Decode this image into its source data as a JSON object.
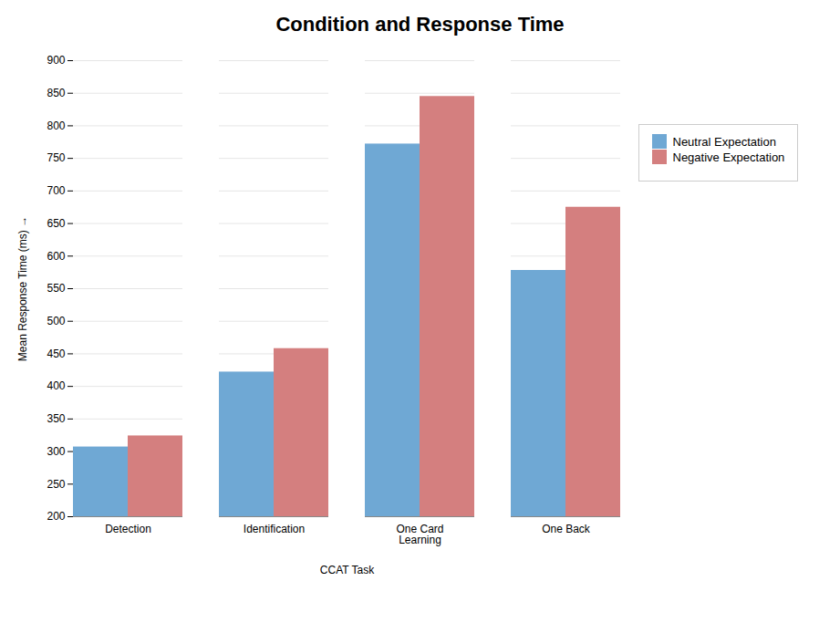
{
  "chart_data": {
    "type": "bar",
    "title": "Condition and Response Time",
    "xlabel": "CCAT Task",
    "ylabel": "Mean Response Time (ms)",
    "categories": [
      "Detection",
      "Identification",
      "One Card\nLearning",
      "One Back"
    ],
    "series": [
      {
        "name": "Neutral Expectation",
        "color": "#6fa8d4",
        "values": [
          307,
          422,
          772,
          578
        ]
      },
      {
        "name": "Negative Expectation",
        "color": "#d47f7f",
        "values": [
          324,
          458,
          845,
          675
        ]
      }
    ],
    "ylim": [
      200,
      900
    ],
    "yticks": [
      200,
      250,
      300,
      350,
      400,
      450,
      500,
      550,
      600,
      650,
      700,
      750,
      800,
      850,
      900
    ],
    "grid": true,
    "legend": "right"
  }
}
